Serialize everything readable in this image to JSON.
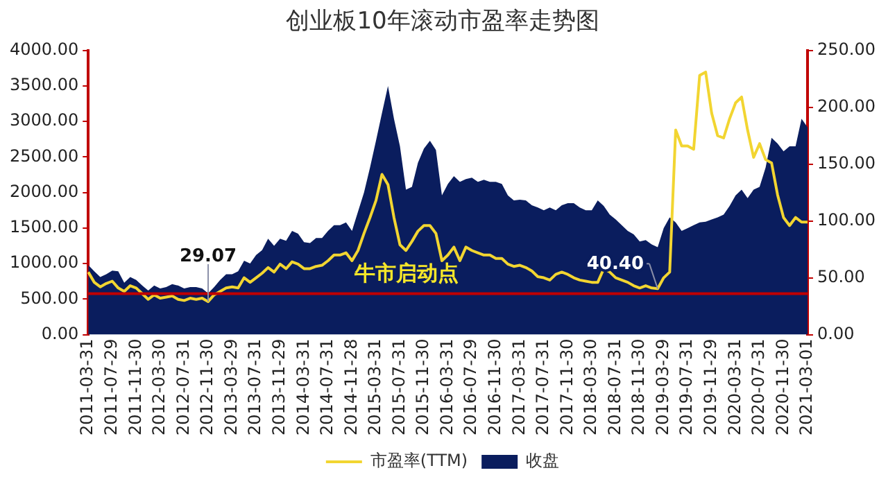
{
  "chart_data": {
    "type": "area",
    "title": "创业板10年滚动市盈率走势图",
    "categories": [
      "2011-03-31",
      null,
      null,
      null,
      "2011-07-29",
      null,
      null,
      null,
      "2011-11-30",
      null,
      null,
      null,
      "2012-03-30",
      null,
      null,
      null,
      "2012-07-31",
      null,
      null,
      null,
      "2012-11-30",
      null,
      null,
      null,
      "2013-03-29",
      null,
      null,
      null,
      "2013-07-31",
      null,
      null,
      null,
      "2013-11-29",
      null,
      null,
      null,
      "2014-03-31",
      null,
      null,
      null,
      "2014-07-31",
      null,
      null,
      null,
      "2014-11-28",
      null,
      null,
      null,
      "2015-03-31",
      null,
      null,
      null,
      "2015-07-31",
      null,
      null,
      null,
      "2015-11-30",
      null,
      null,
      null,
      "2016-03-31",
      null,
      null,
      null,
      "2016-07-29",
      null,
      null,
      null,
      "2016-11-30",
      null,
      null,
      null,
      "2017-03-31",
      null,
      null,
      null,
      "2017-07-31",
      null,
      null,
      null,
      "2017-11-30",
      null,
      null,
      null,
      "2018-03-30",
      null,
      null,
      null,
      "2018-07-31",
      null,
      null,
      null,
      "2018-11-30",
      null,
      null,
      null,
      "2019-03-29",
      null,
      null,
      null,
      "2019-07-31",
      null,
      null,
      null,
      "2019-11-29",
      null,
      null,
      null,
      "2020-03-31",
      null,
      null,
      null,
      "2020-07-31",
      null,
      null,
      null,
      "2020-11-30",
      null,
      null,
      null,
      "2021-03-01"
    ],
    "series": [
      {
        "name": "收盘",
        "type": "area",
        "color": "#0a1d5e",
        "values": [
          980,
          890,
          810,
          850,
          900,
          890,
          730,
          810,
          770,
          690,
          620,
          690,
          650,
          670,
          710,
          690,
          650,
          670,
          670,
          650,
          580,
          670,
          770,
          850,
          850,
          890,
          1040,
          1000,
          1120,
          1190,
          1350,
          1250,
          1350,
          1320,
          1460,
          1420,
          1300,
          1290,
          1360,
          1360,
          1460,
          1540,
          1540,
          1580,
          1460,
          1730,
          2000,
          2350,
          2730,
          3120,
          3500,
          3040,
          2650,
          2040,
          2080,
          2420,
          2620,
          2730,
          2600,
          1960,
          2120,
          2230,
          2150,
          2190,
          2210,
          2150,
          2180,
          2150,
          2150,
          2120,
          1960,
          1890,
          1900,
          1890,
          1820,
          1790,
          1750,
          1790,
          1750,
          1820,
          1850,
          1850,
          1790,
          1750,
          1750,
          1890,
          1810,
          1690,
          1620,
          1540,
          1460,
          1410,
          1310,
          1330,
          1270,
          1230,
          1500,
          1650,
          1580,
          1460,
          1500,
          1540,
          1580,
          1590,
          1620,
          1650,
          1690,
          1810,
          1960,
          2040,
          1920,
          2040,
          2080,
          2350,
          2770,
          2690,
          2580,
          2650,
          2650,
          3040,
          2920
        ]
      },
      {
        "name": "市盈率(TTM)",
        "type": "line",
        "axis": "y2",
        "color": "#f2d531",
        "values": [
          55,
          46,
          42,
          45,
          47,
          41,
          38,
          43,
          41,
          36,
          31,
          35,
          32,
          33,
          34,
          31,
          30,
          32,
          31,
          32,
          29.07,
          35,
          38,
          41,
          42,
          41,
          50,
          46,
          50,
          54,
          59,
          55,
          62,
          58,
          64,
          62,
          58,
          58,
          60,
          61,
          65,
          70,
          70,
          72,
          65,
          74,
          89,
          103,
          118,
          141,
          132,
          103,
          79,
          74,
          82,
          91,
          96,
          96,
          89,
          65,
          70,
          77,
          65,
          77,
          74,
          72,
          70,
          70,
          67,
          67,
          62,
          60,
          61,
          59,
          56,
          51,
          50,
          48,
          53,
          55,
          53,
          50,
          48,
          47,
          46,
          46,
          58,
          55,
          50,
          48,
          46,
          43,
          41,
          43,
          41,
          40.4,
          50,
          55,
          180,
          166,
          166,
          163,
          228,
          231,
          195,
          175,
          173,
          190,
          204,
          209,
          180,
          156,
          168,
          154,
          151,
          123,
          103,
          96,
          103,
          99,
          99
        ],
        "value_labels": [
          null,
          null,
          null,
          null,
          null,
          null,
          null,
          null,
          null,
          null,
          null,
          null,
          null,
          null,
          null,
          null,
          null,
          null,
          null,
          null,
          "29.07",
          null,
          null,
          null,
          null,
          null,
          null,
          null,
          null,
          null,
          null,
          null,
          null,
          null,
          null,
          null,
          null,
          null,
          null,
          null,
          null,
          null,
          null,
          null,
          null,
          null,
          null,
          null,
          null,
          null,
          null,
          null,
          null,
          null,
          null,
          null,
          null,
          null,
          null,
          null,
          null,
          null,
          null,
          null,
          null,
          null,
          null,
          null,
          null,
          null,
          null,
          null,
          null,
          null,
          null,
          null,
          null,
          null,
          null,
          null,
          null,
          null,
          null,
          null,
          null,
          null,
          null,
          null,
          null,
          null,
          null,
          null,
          null,
          null,
          null,
          "40.40",
          null,
          null,
          null,
          null,
          null,
          null,
          null,
          null,
          null,
          null,
          null,
          null,
          null,
          null,
          null,
          null,
          null,
          null,
          null,
          null,
          null,
          null,
          null,
          null,
          null
        ]
      }
    ],
    "ylim": [
      0,
      4000
    ],
    "yticks": [
      {
        "value": 0,
        "label": "0.00"
      },
      {
        "value": 500,
        "label": "500.00"
      },
      {
        "value": 1000,
        "label": "1000.00"
      },
      {
        "value": 1500,
        "label": "1500.00"
      },
      {
        "value": 2000,
        "label": "2000.00"
      },
      {
        "value": 2500,
        "label": "2500.00"
      },
      {
        "value": 3000,
        "label": "3000.00"
      },
      {
        "value": 3500,
        "label": "3500.00"
      },
      {
        "value": 4000,
        "label": "4000.00"
      }
    ],
    "y2lim": [
      0,
      250
    ],
    "y2ticks": [
      {
        "value": 0,
        "label": "0.00"
      },
      {
        "value": 50,
        "label": "50.00"
      },
      {
        "value": 100,
        "label": "100.00"
      },
      {
        "value": 150,
        "label": "150.00"
      },
      {
        "value": 200,
        "label": "200.00"
      },
      {
        "value": 250,
        "label": "250.00"
      }
    ],
    "ref_lines": [
      {
        "axis": "y2",
        "value": 36,
        "label": "牛市启动点",
        "color": "#c00000"
      }
    ],
    "grid": false,
    "legend": "bottom",
    "marker": "none"
  }
}
